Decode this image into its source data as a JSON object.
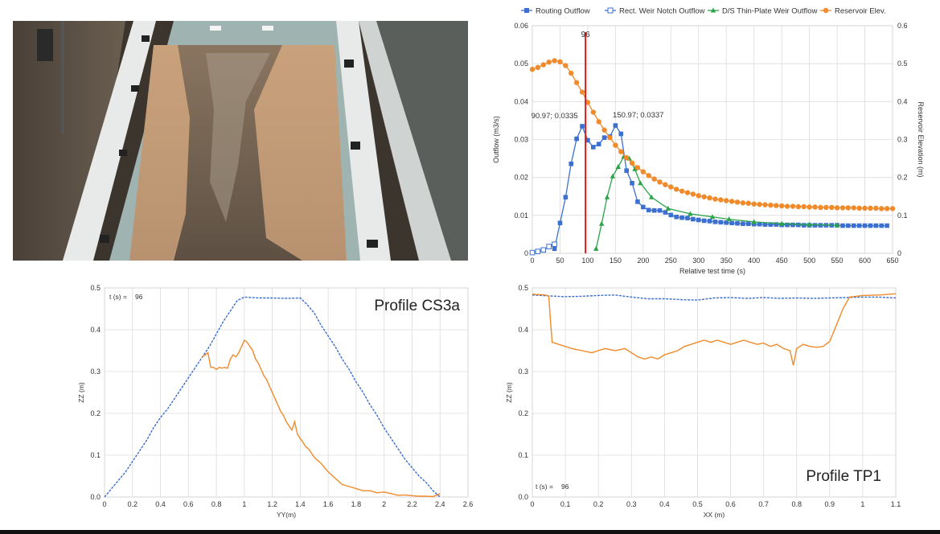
{
  "colors": {
    "routing": "#3b6fd0",
    "rect_weir": "#3b6fd0",
    "thin_plate": "#2ca34a",
    "reservoir": "#f08a2b",
    "marker_line": "#c8201e",
    "profile_initial": "#3b6fd0",
    "profile_current": "#f08a2b"
  },
  "photo": {
    "description_icon": "flume-photo-icon"
  },
  "chart_data": [
    {
      "id": "outflow-chart",
      "type": "line",
      "xlabel": "Relative test time (s)",
      "ylabel": "Outflow (m3/s)",
      "y2label": "Reservoir Elevation (m)",
      "xlim": [
        0,
        650
      ],
      "ylim": [
        0,
        0.06
      ],
      "y2lim": [
        0,
        0.6
      ],
      "xticks": [
        "0",
        "50",
        "100",
        "150",
        "200",
        "250",
        "300",
        "350",
        "400",
        "450",
        "500",
        "550",
        "600",
        "650"
      ],
      "yticks": [
        "0",
        "0.01",
        "0.02",
        "0.03",
        "0.04",
        "0.05",
        "0.06"
      ],
      "y2ticks": [
        "0",
        "0.1",
        "0.2",
        "0.3",
        "0.4",
        "0.5",
        "0.6"
      ],
      "grid": true,
      "legend_position": "top",
      "marker_time": 96,
      "marker_label": "96",
      "annotations": [
        {
          "x": 90.97,
          "y": 0.0335,
          "text": "90.97; 0.0335"
        },
        {
          "x": 150.97,
          "y": 0.0337,
          "text": "150.97; 0.0337"
        }
      ],
      "series": [
        {
          "name": "Routing Outflow",
          "marker": "square-filled",
          "axis": "left",
          "x": [
            40,
            50,
            60,
            70,
            80,
            90,
            100,
            110,
            120,
            130,
            140,
            150,
            160,
            170,
            180,
            190,
            200,
            210,
            220,
            230,
            240,
            250,
            260,
            270,
            280,
            290,
            300,
            310,
            320,
            330,
            340,
            350,
            360,
            370,
            380,
            390,
            400,
            410,
            420,
            430,
            440,
            450,
            460,
            470,
            480,
            490,
            500,
            510,
            520,
            530,
            540,
            550,
            560,
            570,
            580,
            590,
            600,
            610,
            620,
            630,
            640
          ],
          "y": [
            0.0012,
            0.008,
            0.0148,
            0.0236,
            0.0302,
            0.0335,
            0.0298,
            0.028,
            0.0288,
            0.0305,
            0.0308,
            0.0337,
            0.0315,
            0.0218,
            0.0185,
            0.0136,
            0.0122,
            0.0114,
            0.0113,
            0.0113,
            0.0108,
            0.0101,
            0.0096,
            0.0094,
            0.0093,
            0.009,
            0.0088,
            0.0086,
            0.0085,
            0.0083,
            0.0082,
            0.0081,
            0.008,
            0.0079,
            0.0078,
            0.0078,
            0.0077,
            0.0077,
            0.0076,
            0.0076,
            0.0076,
            0.0075,
            0.0075,
            0.0075,
            0.0075,
            0.0074,
            0.0074,
            0.0074,
            0.0074,
            0.0074,
            0.0074,
            0.0074,
            0.0073,
            0.0073,
            0.0073,
            0.0073,
            0.0073,
            0.0073,
            0.0073,
            0.0073,
            0.0073
          ]
        },
        {
          "name": "Rect. Weir Notch Outflow",
          "marker": "square-open",
          "axis": "left",
          "x": [
            0,
            10,
            20,
            30,
            40
          ],
          "y": [
            0.0002,
            0.0005,
            0.0009,
            0.0018,
            0.0024
          ]
        },
        {
          "name": "D/S Thin-Plate Weir Outflow",
          "marker": "triangle-filled",
          "axis": "left",
          "x": [
            115,
            125,
            135,
            145,
            155,
            165,
            175,
            185,
            195,
            215,
            245,
            285,
            325,
            355,
            400,
            450,
            500,
            550
          ],
          "y": [
            0.0012,
            0.0078,
            0.0148,
            0.0203,
            0.0228,
            0.0255,
            0.025,
            0.0222,
            0.0185,
            0.0148,
            0.0118,
            0.0104,
            0.0096,
            0.009,
            0.0083,
            0.0078,
            0.0076,
            0.0074
          ]
        },
        {
          "name": "Reservoir Elev.",
          "marker": "circle-filled",
          "axis": "right",
          "x": [
            0,
            10,
            20,
            30,
            40,
            50,
            60,
            70,
            80,
            90,
            100,
            110,
            120,
            130,
            140,
            150,
            160,
            170,
            180,
            190,
            200,
            210,
            220,
            230,
            240,
            250,
            260,
            270,
            280,
            290,
            300,
            310,
            320,
            330,
            340,
            350,
            360,
            370,
            380,
            390,
            400,
            410,
            420,
            430,
            440,
            450,
            460,
            470,
            480,
            490,
            500,
            510,
            520,
            530,
            540,
            550,
            560,
            570,
            580,
            590,
            600,
            610,
            620,
            630,
            640,
            650
          ],
          "y": [
            0.485,
            0.49,
            0.497,
            0.504,
            0.508,
            0.505,
            0.495,
            0.475,
            0.45,
            0.425,
            0.398,
            0.372,
            0.347,
            0.325,
            0.305,
            0.285,
            0.268,
            0.252,
            0.238,
            0.226,
            0.215,
            0.205,
            0.196,
            0.188,
            0.181,
            0.175,
            0.169,
            0.164,
            0.16,
            0.156,
            0.152,
            0.149,
            0.146,
            0.143,
            0.141,
            0.139,
            0.137,
            0.135,
            0.133,
            0.132,
            0.13,
            0.129,
            0.128,
            0.127,
            0.126,
            0.125,
            0.124,
            0.124,
            0.123,
            0.123,
            0.122,
            0.122,
            0.121,
            0.121,
            0.121,
            0.12,
            0.12,
            0.12,
            0.12,
            0.119,
            0.119,
            0.119,
            0.119,
            0.118,
            0.118,
            0.118
          ]
        }
      ]
    },
    {
      "id": "profile-cs3a",
      "type": "line",
      "title": "Profile CS3a",
      "xlabel": "YY(m)",
      "ylabel": "ZZ (m)",
      "xlim": [
        0,
        2.6
      ],
      "ylim": [
        0,
        0.5
      ],
      "xticks": [
        "0",
        "0.2",
        "0.4",
        "0.6",
        "0.8",
        "1",
        "1.2",
        "1.4",
        "1.6",
        "1.8",
        "2",
        "2.2",
        "2.4",
        "2.6"
      ],
      "yticks": [
        "0.0",
        "0.1",
        "0.2",
        "0.3",
        "0.4",
        "0.5"
      ],
      "grid": true,
      "time_label": "t (s) =",
      "time_value": "96",
      "series": [
        {
          "style": "dashed",
          "x": [
            0,
            0.05,
            0.1,
            0.15,
            0.2,
            0.25,
            0.3,
            0.35,
            0.4,
            0.45,
            0.5,
            0.55,
            0.6,
            0.65,
            0.7,
            0.75,
            0.8,
            0.85,
            0.9,
            0.95,
            1.0,
            1.1,
            1.2,
            1.3,
            1.4,
            1.45,
            1.5,
            1.55,
            1.6,
            1.65,
            1.7,
            1.75,
            1.8,
            1.85,
            1.9,
            1.95,
            2.0,
            2.05,
            2.1,
            2.15,
            2.2,
            2.25,
            2.3,
            2.35,
            2.4
          ],
          "y": [
            0.0,
            0.02,
            0.04,
            0.06,
            0.085,
            0.11,
            0.135,
            0.165,
            0.19,
            0.21,
            0.235,
            0.26,
            0.285,
            0.31,
            0.335,
            0.36,
            0.39,
            0.42,
            0.445,
            0.47,
            0.478,
            0.476,
            0.476,
            0.475,
            0.476,
            0.46,
            0.44,
            0.41,
            0.385,
            0.36,
            0.33,
            0.305,
            0.275,
            0.25,
            0.22,
            0.195,
            0.165,
            0.14,
            0.115,
            0.09,
            0.07,
            0.05,
            0.035,
            0.015,
            0.0
          ]
        },
        {
          "style": "solid",
          "x": [
            0.7,
            0.72,
            0.74,
            0.76,
            0.78,
            0.8,
            0.82,
            0.84,
            0.86,
            0.88,
            0.9,
            0.92,
            0.94,
            0.96,
            0.98,
            1.0,
            1.02,
            1.04,
            1.06,
            1.08,
            1.1,
            1.12,
            1.14,
            1.16,
            1.18,
            1.2,
            1.22,
            1.24,
            1.26,
            1.28,
            1.3,
            1.32,
            1.34,
            1.36,
            1.38,
            1.4,
            1.42,
            1.44,
            1.46,
            1.48,
            1.5,
            1.55,
            1.6,
            1.65,
            1.7,
            1.75,
            1.8,
            1.85,
            1.9,
            1.95,
            2.0,
            2.05,
            2.1,
            2.15,
            2.2,
            2.25,
            2.3,
            2.35,
            2.4
          ],
          "y": [
            0.335,
            0.34,
            0.345,
            0.31,
            0.31,
            0.305,
            0.31,
            0.308,
            0.31,
            0.308,
            0.33,
            0.34,
            0.335,
            0.345,
            0.36,
            0.375,
            0.37,
            0.36,
            0.35,
            0.33,
            0.32,
            0.305,
            0.29,
            0.28,
            0.265,
            0.25,
            0.235,
            0.22,
            0.205,
            0.195,
            0.18,
            0.17,
            0.16,
            0.18,
            0.15,
            0.14,
            0.13,
            0.12,
            0.115,
            0.105,
            0.095,
            0.08,
            0.06,
            0.045,
            0.03,
            0.025,
            0.02,
            0.015,
            0.015,
            0.01,
            0.012,
            0.008,
            0.004,
            0.005,
            0.003,
            0.002,
            0.002,
            0.001,
            0.008
          ]
        }
      ]
    },
    {
      "id": "profile-tp1",
      "type": "line",
      "title": "Profile TP1",
      "xlabel": "XX (m)",
      "ylabel": "ZZ (m)",
      "xlim": [
        0,
        1.1
      ],
      "ylim": [
        0,
        0.5
      ],
      "xticks": [
        "0",
        "0.1",
        "0.2",
        "0.3",
        "0.4",
        "0.5",
        "0.6",
        "0.7",
        "0.8",
        "0.9",
        "1",
        "1.1"
      ],
      "yticks": [
        "0.0",
        "0.1",
        "0.2",
        "0.3",
        "0.4",
        "0.5"
      ],
      "grid": true,
      "time_label": "t (s) =",
      "time_value": "96",
      "series": [
        {
          "style": "dashed",
          "x": [
            0,
            0.05,
            0.1,
            0.15,
            0.2,
            0.25,
            0.3,
            0.35,
            0.4,
            0.45,
            0.5,
            0.55,
            0.6,
            0.65,
            0.7,
            0.75,
            0.8,
            0.85,
            0.9,
            0.95,
            1.0,
            1.05,
            1.1
          ],
          "y": [
            0.483,
            0.481,
            0.479,
            0.48,
            0.482,
            0.483,
            0.478,
            0.474,
            0.474,
            0.472,
            0.471,
            0.476,
            0.477,
            0.475,
            0.477,
            0.475,
            0.476,
            0.475,
            0.476,
            0.477,
            0.478,
            0.478,
            0.476
          ]
        },
        {
          "style": "solid",
          "x": [
            0,
            0.04,
            0.05,
            0.055,
            0.06,
            0.08,
            0.1,
            0.12,
            0.15,
            0.18,
            0.2,
            0.22,
            0.25,
            0.28,
            0.3,
            0.32,
            0.34,
            0.36,
            0.38,
            0.4,
            0.42,
            0.44,
            0.46,
            0.48,
            0.5,
            0.52,
            0.54,
            0.56,
            0.58,
            0.6,
            0.62,
            0.64,
            0.66,
            0.68,
            0.7,
            0.72,
            0.74,
            0.76,
            0.78,
            0.79,
            0.8,
            0.82,
            0.84,
            0.86,
            0.88,
            0.9,
            0.92,
            0.94,
            0.96,
            0.98,
            1.0,
            1.05,
            1.1
          ],
          "y": [
            0.485,
            0.483,
            0.48,
            0.42,
            0.37,
            0.365,
            0.36,
            0.355,
            0.35,
            0.345,
            0.35,
            0.355,
            0.35,
            0.355,
            0.345,
            0.335,
            0.33,
            0.335,
            0.33,
            0.34,
            0.345,
            0.35,
            0.36,
            0.365,
            0.37,
            0.375,
            0.37,
            0.375,
            0.37,
            0.365,
            0.37,
            0.375,
            0.37,
            0.365,
            0.368,
            0.36,
            0.365,
            0.355,
            0.35,
            0.315,
            0.355,
            0.365,
            0.36,
            0.358,
            0.36,
            0.372,
            0.41,
            0.45,
            0.478,
            0.48,
            0.482,
            0.483,
            0.486
          ]
        }
      ]
    }
  ]
}
